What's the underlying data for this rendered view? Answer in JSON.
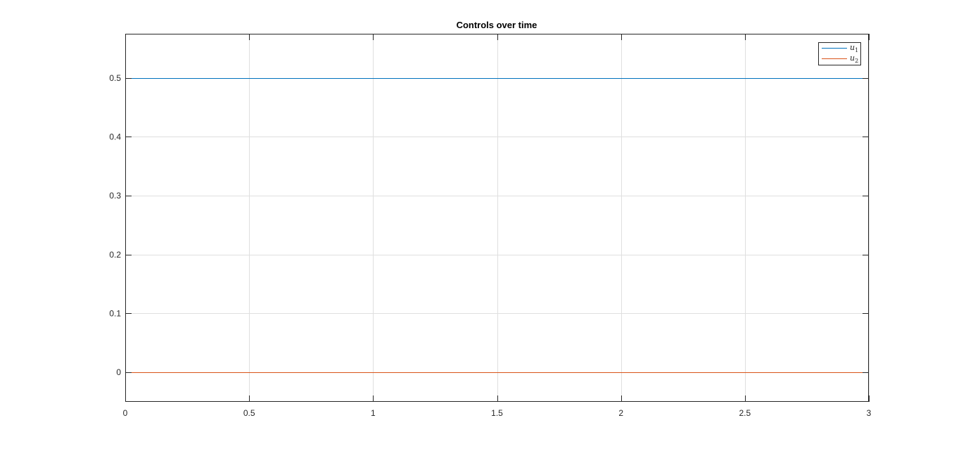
{
  "chart_data": {
    "type": "line",
    "title": "Controls over time",
    "xlabel": "",
    "ylabel": "",
    "xlim": [
      0,
      3
    ],
    "ylim": [
      -0.05,
      0.575
    ],
    "xticks": [
      0,
      0.5,
      1,
      1.5,
      2,
      2.5,
      3
    ],
    "xtick_labels": [
      "0",
      "0.5",
      "1",
      "1.5",
      "2",
      "2.5",
      "3"
    ],
    "yticks": [
      0,
      0.1,
      0.2,
      0.3,
      0.4,
      0.5
    ],
    "ytick_labels": [
      "0",
      "0.1",
      "0.2",
      "0.3",
      "0.4",
      "0.5"
    ],
    "grid": true,
    "legend_position": "top-right",
    "series": [
      {
        "name": "u1",
        "legend_base": "u",
        "legend_sub": "1",
        "color": "#0072BD",
        "x": [
          0,
          3
        ],
        "y": [
          0.5,
          0.5
        ]
      },
      {
        "name": "u2",
        "legend_base": "u",
        "legend_sub": "2",
        "color": "#D95319",
        "x": [
          0,
          3
        ],
        "y": [
          0,
          0
        ]
      }
    ]
  }
}
